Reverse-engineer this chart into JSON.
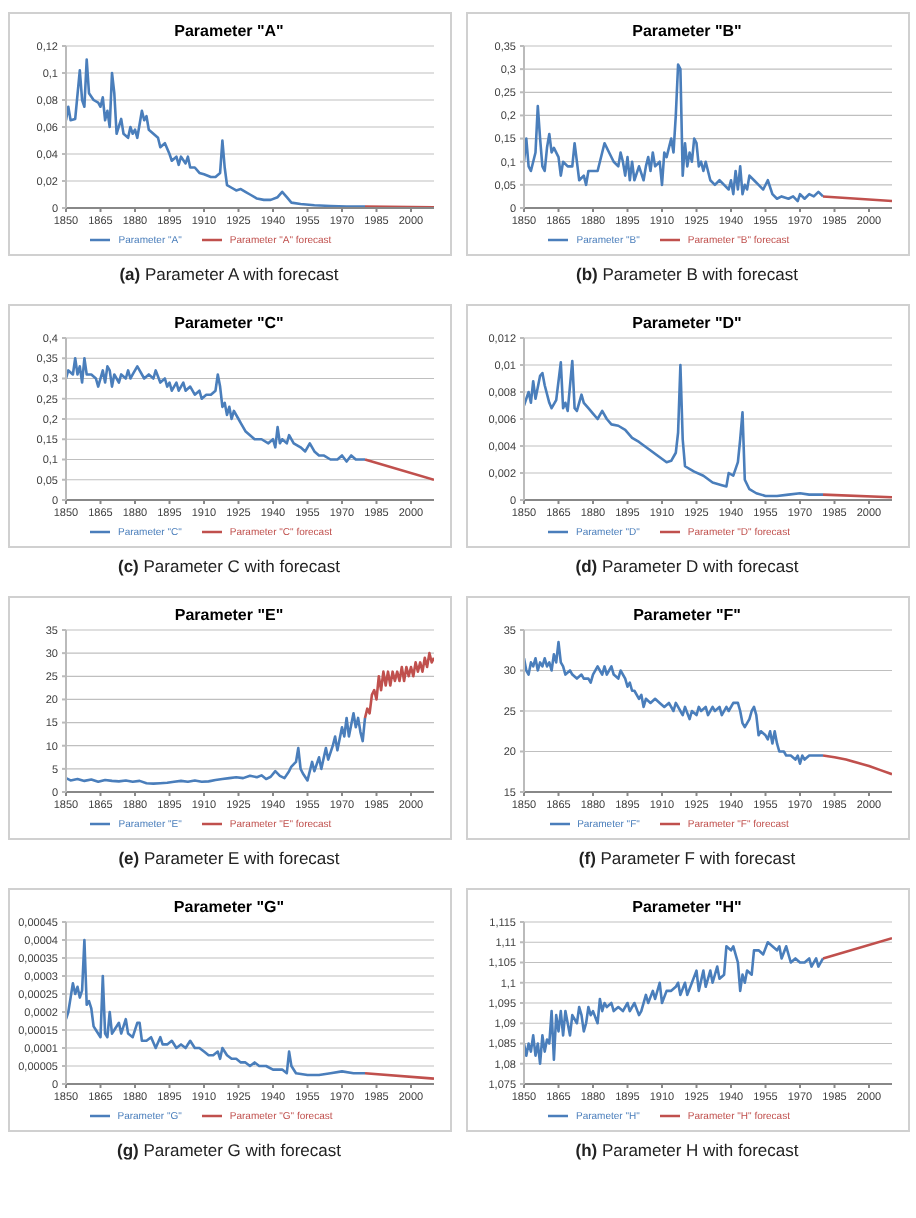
{
  "chart_data": [
    {
      "type": "line",
      "title": "Parameter \"A\"",
      "annotations": [
        "(a) Parameter A with forecast"
      ],
      "xlim": [
        1850,
        2010
      ],
      "xticks": [
        1850,
        1865,
        1880,
        1895,
        1910,
        1925,
        1940,
        1955,
        1970,
        1985,
        2000
      ],
      "ylim": [
        0,
        0.12
      ],
      "yticks": [
        0,
        {
          "value": 0.02,
          "label": "0,02"
        },
        {
          "value": 0.04,
          "label": "0,04"
        },
        {
          "value": 0.06,
          "label": "0,06"
        },
        {
          "value": 0.08,
          "label": "0,08"
        },
        {
          "value": 0.1,
          "label": "0,1"
        },
        {
          "value": 0.12,
          "label": "0,12"
        }
      ],
      "grid": "y",
      "legend": "bottom",
      "series": [
        {
          "name": "Parameter \"A\"",
          "color": "#4a7ebb",
          "x": [
            1850,
            1851,
            1852,
            1854,
            1856,
            1857,
            1858,
            1859,
            1860,
            1862,
            1864,
            1865,
            1866,
            1867,
            1868,
            1869,
            1870,
            1871,
            1872,
            1874,
            1875,
            1877,
            1878,
            1879,
            1880,
            1881,
            1883,
            1884,
            1885,
            1886,
            1888,
            1890,
            1891,
            1893,
            1895,
            1896,
            1898,
            1899,
            1900,
            1902,
            1903,
            1904,
            1906,
            1908,
            1910,
            1913,
            1915,
            1917,
            1918,
            1919,
            1920,
            1922,
            1924,
            1926,
            1928,
            1930,
            1933,
            1936,
            1939,
            1942,
            1944,
            1946,
            1948,
            1952,
            1958,
            1965,
            1972,
            1980
          ],
          "values": [
            0.065,
            0.075,
            0.065,
            0.066,
            0.102,
            0.08,
            0.075,
            0.11,
            0.085,
            0.08,
            0.078,
            0.075,
            0.082,
            0.065,
            0.072,
            0.06,
            0.1,
            0.085,
            0.055,
            0.066,
            0.055,
            0.052,
            0.06,
            0.055,
            0.058,
            0.052,
            0.072,
            0.065,
            0.068,
            0.058,
            0.055,
            0.052,
            0.045,
            0.048,
            0.04,
            0.035,
            0.038,
            0.032,
            0.038,
            0.033,
            0.038,
            0.03,
            0.03,
            0.026,
            0.025,
            0.023,
            0.023,
            0.026,
            0.05,
            0.03,
            0.017,
            0.015,
            0.013,
            0.014,
            0.012,
            0.01,
            0.007,
            0.006,
            0.006,
            0.008,
            0.012,
            0.008,
            0.004,
            0.003,
            0.002,
            0.0015,
            0.001,
            0.001
          ]
        },
        {
          "name": "Parameter \"A\" forecast",
          "color": "#c0504d",
          "x": [
            1980,
            2010
          ],
          "values": [
            0.001,
            0.0005
          ]
        }
      ]
    },
    {
      "type": "line",
      "title": "Parameter \"B\"",
      "annotations": [
        "(b) Parameter B with forecast"
      ],
      "xlim": [
        1850,
        2010
      ],
      "xticks": [
        1850,
        1865,
        1880,
        1895,
        1910,
        1925,
        1940,
        1955,
        1970,
        1985,
        2000
      ],
      "ylim": [
        0,
        0.35
      ],
      "yticks": [
        0,
        {
          "value": 0.05,
          "label": "0,05"
        },
        {
          "value": 0.1,
          "label": "0,1"
        },
        {
          "value": 0.15,
          "label": "0,15"
        },
        {
          "value": 0.2,
          "label": "0,2"
        },
        {
          "value": 0.25,
          "label": "0,25"
        },
        {
          "value": 0.3,
          "label": "0,3"
        },
        {
          "value": 0.35,
          "label": "0,35"
        }
      ],
      "grid": "y",
      "legend": "bottom",
      "series": [
        {
          "name": "Parameter \"B\"",
          "color": "#4a7ebb",
          "x": [
            1850,
            1851,
            1852,
            1853,
            1855,
            1856,
            1857,
            1858,
            1859,
            1860,
            1861,
            1862,
            1863,
            1865,
            1866,
            1867,
            1869,
            1871,
            1872,
            1873,
            1874,
            1876,
            1877,
            1878,
            1880,
            1882,
            1884,
            1885,
            1887,
            1889,
            1891,
            1892,
            1893,
            1894,
            1895,
            1896,
            1897,
            1898,
            1900,
            1902,
            1903,
            1904,
            1905,
            1906,
            1907,
            1909,
            1910,
            1911,
            1912,
            1913,
            1914,
            1915,
            1916,
            1917,
            1918,
            1919,
            1920,
            1921,
            1922,
            1923,
            1924,
            1925,
            1926,
            1927,
            1928,
            1929,
            1931,
            1933,
            1935,
            1937,
            1939,
            1940,
            1941,
            1942,
            1943,
            1944,
            1945,
            1946,
            1947,
            1948,
            1950,
            1952,
            1954,
            1956,
            1958,
            1960,
            1962,
            1965,
            1967,
            1969,
            1970,
            1972,
            1974,
            1976,
            1978,
            1980
          ],
          "values": [
            0.1,
            0.15,
            0.09,
            0.08,
            0.12,
            0.22,
            0.15,
            0.09,
            0.08,
            0.13,
            0.16,
            0.12,
            0.13,
            0.11,
            0.07,
            0.1,
            0.09,
            0.09,
            0.14,
            0.1,
            0.06,
            0.07,
            0.05,
            0.08,
            0.08,
            0.08,
            0.12,
            0.14,
            0.12,
            0.1,
            0.09,
            0.12,
            0.1,
            0.07,
            0.11,
            0.06,
            0.1,
            0.06,
            0.09,
            0.06,
            0.09,
            0.11,
            0.08,
            0.12,
            0.09,
            0.1,
            0.05,
            0.12,
            0.11,
            0.13,
            0.15,
            0.12,
            0.2,
            0.31,
            0.3,
            0.07,
            0.14,
            0.09,
            0.12,
            0.1,
            0.15,
            0.14,
            0.09,
            0.1,
            0.08,
            0.1,
            0.06,
            0.05,
            0.06,
            0.05,
            0.04,
            0.06,
            0.03,
            0.08,
            0.04,
            0.09,
            0.03,
            0.05,
            0.04,
            0.07,
            0.06,
            0.05,
            0.04,
            0.06,
            0.03,
            0.02,
            0.025,
            0.02,
            0.025,
            0.015,
            0.03,
            0.02,
            0.03,
            0.025,
            0.035,
            0.025
          ]
        },
        {
          "name": "Parameter \"B\" forecast",
          "color": "#c0504d",
          "x": [
            1980,
            2010
          ],
          "values": [
            0.025,
            0.015
          ]
        }
      ]
    },
    {
      "type": "line",
      "title": "Parameter \"C\"",
      "annotations": [
        "(c) Parameter C with forecast"
      ],
      "xlim": [
        1850,
        2010
      ],
      "xticks": [
        1850,
        1865,
        1880,
        1895,
        1910,
        1925,
        1940,
        1955,
        1970,
        1985,
        2000
      ],
      "ylim": [
        0,
        0.4
      ],
      "yticks": [
        0,
        {
          "value": 0.05,
          "label": "0,05"
        },
        {
          "value": 0.1,
          "label": "0,1"
        },
        {
          "value": 0.15,
          "label": "0,15"
        },
        {
          "value": 0.2,
          "label": "0,2"
        },
        {
          "value": 0.25,
          "label": "0,25"
        },
        {
          "value": 0.3,
          "label": "0,3"
        },
        {
          "value": 0.35,
          "label": "0,35"
        },
        {
          "value": 0.4,
          "label": "0,4"
        }
      ],
      "grid": "y",
      "legend": "bottom",
      "series": [
        {
          "name": "Parameter \"C\"",
          "color": "#4a7ebb",
          "x": [
            1850,
            1851,
            1853,
            1854,
            1855,
            1856,
            1857,
            1858,
            1859,
            1861,
            1863,
            1864,
            1866,
            1867,
            1868,
            1869,
            1870,
            1871,
            1873,
            1874,
            1876,
            1877,
            1878,
            1879,
            1881,
            1882,
            1884,
            1886,
            1888,
            1889,
            1891,
            1893,
            1894,
            1895,
            1896,
            1898,
            1899,
            1901,
            1902,
            1904,
            1906,
            1908,
            1909,
            1911,
            1913,
            1915,
            1916,
            1917,
            1918,
            1919,
            1920,
            1921,
            1922,
            1923,
            1925,
            1926,
            1928,
            1930,
            1932,
            1935,
            1938,
            1940,
            1941,
            1942,
            1943,
            1944,
            1946,
            1947,
            1949,
            1952,
            1954,
            1956,
            1958,
            1960,
            1962,
            1965,
            1968,
            1970,
            1972,
            1974,
            1976,
            1980
          ],
          "values": [
            0.3,
            0.32,
            0.31,
            0.35,
            0.31,
            0.33,
            0.29,
            0.35,
            0.31,
            0.31,
            0.3,
            0.28,
            0.32,
            0.29,
            0.33,
            0.32,
            0.28,
            0.31,
            0.29,
            0.31,
            0.3,
            0.32,
            0.3,
            0.31,
            0.33,
            0.32,
            0.3,
            0.31,
            0.3,
            0.32,
            0.29,
            0.3,
            0.28,
            0.29,
            0.27,
            0.29,
            0.27,
            0.29,
            0.27,
            0.28,
            0.26,
            0.27,
            0.25,
            0.26,
            0.26,
            0.27,
            0.31,
            0.28,
            0.23,
            0.24,
            0.21,
            0.23,
            0.2,
            0.22,
            0.2,
            0.19,
            0.17,
            0.16,
            0.15,
            0.15,
            0.14,
            0.15,
            0.13,
            0.18,
            0.14,
            0.15,
            0.14,
            0.16,
            0.14,
            0.13,
            0.12,
            0.14,
            0.12,
            0.11,
            0.11,
            0.1,
            0.1,
            0.11,
            0.095,
            0.11,
            0.1,
            0.1
          ]
        },
        {
          "name": "Parameter \"C\" forecast",
          "color": "#c0504d",
          "x": [
            1980,
            2010
          ],
          "values": [
            0.1,
            0.05
          ]
        }
      ]
    },
    {
      "type": "line",
      "title": "Parameter \"D\"",
      "annotations": [
        "(d) Parameter D with forecast"
      ],
      "xlim": [
        1850,
        2010
      ],
      "xticks": [
        1850,
        1865,
        1880,
        1895,
        1910,
        1925,
        1940,
        1955,
        1970,
        1985,
        2000
      ],
      "ylim": [
        0,
        0.012
      ],
      "yticks": [
        0,
        {
          "value": 0.002,
          "label": "0,002"
        },
        {
          "value": 0.004,
          "label": "0,004"
        },
        {
          "value": 0.006,
          "label": "0,006"
        },
        {
          "value": 0.008,
          "label": "0,008"
        },
        {
          "value": 0.01,
          "label": "0,01"
        },
        {
          "value": 0.012,
          "label": "0,012"
        }
      ],
      "grid": "y",
      "legend": "bottom",
      "series": [
        {
          "name": "Parameter \"D\"",
          "color": "#4a7ebb",
          "x": [
            1850,
            1852,
            1853,
            1854,
            1855,
            1857,
            1858,
            1859,
            1861,
            1862,
            1864,
            1866,
            1867,
            1868,
            1869,
            1871,
            1872,
            1873,
            1875,
            1876,
            1878,
            1880,
            1882,
            1884,
            1886,
            1888,
            1891,
            1894,
            1897,
            1900,
            1904,
            1908,
            1912,
            1914,
            1916,
            1917,
            1918,
            1919,
            1920,
            1924,
            1928,
            1932,
            1936,
            1938,
            1939,
            1941,
            1943,
            1944,
            1945,
            1946,
            1948,
            1951,
            1955,
            1960,
            1965,
            1970,
            1974,
            1980
          ],
          "values": [
            0.007,
            0.008,
            0.0072,
            0.0088,
            0.0075,
            0.0092,
            0.0094,
            0.0085,
            0.0072,
            0.0068,
            0.0074,
            0.0102,
            0.0068,
            0.0072,
            0.0066,
            0.0103,
            0.0068,
            0.0066,
            0.0078,
            0.0072,
            0.0068,
            0.0064,
            0.006,
            0.0066,
            0.006,
            0.0056,
            0.0055,
            0.0052,
            0.0046,
            0.0043,
            0.0038,
            0.0033,
            0.0028,
            0.0029,
            0.0035,
            0.005,
            0.01,
            0.0045,
            0.0025,
            0.0021,
            0.0018,
            0.0013,
            0.0011,
            0.001,
            0.002,
            0.0018,
            0.0028,
            0.0045,
            0.0065,
            0.0015,
            0.0008,
            0.0005,
            0.0003,
            0.0003,
            0.0004,
            0.0005,
            0.0004,
            0.0004
          ]
        },
        {
          "name": "Parameter \"D\" forecast",
          "color": "#c0504d",
          "x": [
            1980,
            2010
          ],
          "values": [
            0.0004,
            0.0002
          ]
        }
      ]
    },
    {
      "type": "line",
      "title": "Parameter \"E\"",
      "annotations": [
        "(e) Parameter E with forecast"
      ],
      "xlim": [
        1850,
        2010
      ],
      "xticks": [
        1850,
        1865,
        1880,
        1895,
        1910,
        1925,
        1940,
        1955,
        1970,
        1985,
        2000
      ],
      "ylim": [
        0,
        35
      ],
      "yticks": [
        0,
        5,
        10,
        15,
        20,
        25,
        30,
        35
      ],
      "grid": "y",
      "legend": "bottom",
      "series": [
        {
          "name": "Parameter \"E\"",
          "color": "#4a7ebb",
          "x": [
            1850,
            1852,
            1855,
            1858,
            1861,
            1864,
            1867,
            1870,
            1873,
            1876,
            1879,
            1882,
            1885,
            1888,
            1891,
            1894,
            1897,
            1900,
            1903,
            1906,
            1909,
            1912,
            1915,
            1918,
            1921,
            1924,
            1927,
            1930,
            1933,
            1935,
            1937,
            1939,
            1941,
            1943,
            1945,
            1947,
            1948,
            1950,
            1951,
            1952,
            1953,
            1955,
            1957,
            1958,
            1960,
            1961,
            1963,
            1964,
            1966,
            1967,
            1968,
            1970,
            1971,
            1972,
            1973,
            1975,
            1976,
            1977,
            1978,
            1979,
            1980
          ],
          "values": [
            3,
            2.5,
            2.8,
            2.4,
            2.7,
            2.2,
            2.6,
            2.4,
            2.3,
            2.5,
            2.2,
            2.4,
            1.9,
            1.8,
            1.9,
            2,
            2.2,
            2.4,
            2.2,
            2.5,
            2.2,
            2.3,
            2.6,
            2.8,
            3,
            3.2,
            3,
            3.5,
            3.2,
            3.6,
            2.8,
            3.3,
            4.5,
            3.5,
            3,
            4.5,
            5.5,
            6.5,
            9.5,
            5,
            4,
            2.5,
            6.5,
            4.5,
            7.5,
            5,
            9.5,
            7,
            10,
            12,
            9,
            14,
            12,
            16,
            12,
            17,
            14,
            16,
            13,
            11,
            16
          ]
        },
        {
          "name": "Parameter \"E\" forecast",
          "color": "#c0504d",
          "x": [
            1980,
            1981,
            1982,
            1983,
            1984,
            1985,
            1986,
            1987,
            1988,
            1989,
            1990,
            1991,
            1992,
            1993,
            1994,
            1995,
            1996,
            1997,
            1998,
            1999,
            2000,
            2001,
            2002,
            2003,
            2004,
            2005,
            2006,
            2007,
            2008,
            2009,
            2010
          ],
          "values": [
            16,
            18,
            17,
            21,
            22,
            20,
            25,
            22,
            26,
            23,
            26,
            23,
            26,
            24,
            26,
            24,
            27,
            24,
            27,
            25,
            27,
            25,
            28,
            26,
            28,
            26,
            29,
            27,
            30,
            28,
            29
          ]
        }
      ]
    },
    {
      "type": "line",
      "title": "Parameter \"F\"",
      "annotations": [
        "(f) Parameter F with forecast"
      ],
      "xlim": [
        1850,
        2010
      ],
      "xticks": [
        1850,
        1865,
        1880,
        1895,
        1910,
        1925,
        1940,
        1955,
        1970,
        1985,
        2000
      ],
      "ylim": [
        15,
        35
      ],
      "yticks": [
        15,
        20,
        25,
        30,
        35
      ],
      "grid": "y",
      "legend": "bottom",
      "series": [
        {
          "name": "Parameter \"F\"",
          "color": "#4a7ebb",
          "x": [
            1850,
            1851,
            1852,
            1853,
            1854,
            1855,
            1856,
            1857,
            1858,
            1859,
            1860,
            1861,
            1862,
            1863,
            1864,
            1865,
            1866,
            1867,
            1868,
            1870,
            1871,
            1873,
            1875,
            1876,
            1878,
            1879,
            1880,
            1882,
            1883,
            1884,
            1885,
            1886,
            1887,
            1888,
            1889,
            1891,
            1892,
            1894,
            1895,
            1896,
            1897,
            1898,
            1900,
            1901,
            1902,
            1903,
            1905,
            1907,
            1909,
            1911,
            1913,
            1915,
            1916,
            1917,
            1918,
            1919,
            1920,
            1922,
            1923,
            1925,
            1926,
            1927,
            1929,
            1930,
            1932,
            1933,
            1935,
            1936,
            1938,
            1939,
            1941,
            1943,
            1944,
            1945,
            1946,
            1948,
            1949,
            1950,
            1951,
            1952,
            1953,
            1955,
            1956,
            1957,
            1958,
            1959,
            1960,
            1961,
            1963,
            1964,
            1966,
            1968,
            1969,
            1970,
            1971,
            1972,
            1974,
            1976,
            1978,
            1980
          ],
          "values": [
            31.5,
            30,
            29.5,
            31,
            30.5,
            31.5,
            30,
            31,
            30.5,
            31.5,
            30.5,
            31,
            30,
            32,
            31,
            33.5,
            31,
            30.5,
            29.5,
            30,
            29.5,
            29,
            29.5,
            29,
            29,
            28.5,
            29.5,
            30.5,
            30,
            29.5,
            30.5,
            29.5,
            30,
            30.5,
            29.5,
            29,
            30,
            29,
            28,
            28.5,
            27.5,
            27.5,
            26.5,
            27,
            25.5,
            26.5,
            26,
            26.5,
            26,
            25.5,
            26,
            25,
            26,
            25.5,
            25,
            24.5,
            25.5,
            24,
            25,
            24.5,
            25.5,
            25,
            25.5,
            24.5,
            25.5,
            25,
            25.5,
            24.5,
            25.5,
            25,
            26,
            26,
            25,
            23.5,
            23,
            24,
            25,
            25.5,
            24.5,
            22,
            22.5,
            22,
            21.5,
            22.5,
            21,
            22.5,
            21,
            20,
            20,
            19.5,
            19.5,
            19,
            19.5,
            18.5,
            19.5,
            19,
            19.5,
            19.5,
            19.5,
            19.5
          ]
        },
        {
          "name": "Parameter \"F\" forecast",
          "color": "#c0504d",
          "x": [
            1980,
            1985,
            1990,
            1995,
            2000,
            2005,
            2010
          ],
          "values": [
            19.5,
            19.3,
            19,
            18.6,
            18.2,
            17.7,
            17.2
          ]
        }
      ]
    },
    {
      "type": "line",
      "title": "Parameter \"G\"",
      "annotations": [
        "(g) Parameter G with forecast"
      ],
      "xlim": [
        1850,
        2010
      ],
      "xticks": [
        1850,
        1865,
        1880,
        1895,
        1910,
        1925,
        1940,
        1955,
        1970,
        1985,
        2000
      ],
      "ylim": [
        0,
        0.00045
      ],
      "yticks": [
        0,
        {
          "value": 5e-05,
          "label": "0,00005"
        },
        {
          "value": 0.0001,
          "label": "0,0001"
        },
        {
          "value": 0.00015,
          "label": "0,00015"
        },
        {
          "value": 0.0002,
          "label": "0,0002"
        },
        {
          "value": 0.00025,
          "label": "0,00025"
        },
        {
          "value": 0.0003,
          "label": "0,0003"
        },
        {
          "value": 0.00035,
          "label": "0,00035"
        },
        {
          "value": 0.0004,
          "label": "0,0004"
        },
        {
          "value": 0.00045,
          "label": "0,00045"
        }
      ],
      "grid": "y",
      "legend": "bottom",
      "series": [
        {
          "name": "Parameter \"G\"",
          "color": "#4a7ebb",
          "x": [
            1850,
            1851,
            1852,
            1853,
            1854,
            1855,
            1856,
            1857,
            1858,
            1859,
            1860,
            1861,
            1862,
            1863,
            1865,
            1866,
            1867,
            1868,
            1869,
            1870,
            1871,
            1873,
            1874,
            1876,
            1877,
            1879,
            1881,
            1882,
            1883,
            1885,
            1887,
            1889,
            1891,
            1892,
            1894,
            1896,
            1898,
            1900,
            1902,
            1904,
            1906,
            1908,
            1910,
            1912,
            1914,
            1916,
            1917,
            1918,
            1920,
            1922,
            1924,
            1926,
            1928,
            1930,
            1932,
            1934,
            1937,
            1940,
            1944,
            1946,
            1947,
            1948,
            1950,
            1955,
            1960,
            1965,
            1970,
            1975,
            1980
          ],
          "values": [
            0.00018,
            0.0002,
            0.00024,
            0.00028,
            0.00025,
            0.00027,
            0.00024,
            0.00026,
            0.0004,
            0.00022,
            0.00023,
            0.00021,
            0.00016,
            0.00015,
            0.00013,
            0.0003,
            0.00014,
            0.00013,
            0.0002,
            0.00014,
            0.00015,
            0.00017,
            0.00014,
            0.00018,
            0.00014,
            0.00013,
            0.00017,
            0.00017,
            0.00012,
            0.00012,
            0.00013,
            0.0001,
            0.00013,
            0.00011,
            0.00011,
            0.00012,
            0.0001,
            0.00011,
            0.0001,
            0.00012,
            0.0001,
            0.0001,
            9e-05,
            8e-05,
            8e-05,
            9e-05,
            7e-05,
            0.0001,
            8e-05,
            7e-05,
            7e-05,
            6e-05,
            6e-05,
            5e-05,
            6e-05,
            5e-05,
            5e-05,
            4e-05,
            4e-05,
            3e-05,
            9e-05,
            5e-05,
            3e-05,
            2.5e-05,
            2.5e-05,
            3e-05,
            3.5e-05,
            3e-05,
            3e-05
          ]
        },
        {
          "name": "Parameter \"G\" forecast",
          "color": "#c0504d",
          "x": [
            1980,
            2010
          ],
          "values": [
            3e-05,
            1.5e-05
          ]
        }
      ]
    },
    {
      "type": "line",
      "title": "Parameter \"H\"",
      "annotations": [
        "(h) Parameter H with forecast"
      ],
      "xlim": [
        1850,
        2010
      ],
      "xticks": [
        1850,
        1865,
        1880,
        1895,
        1910,
        1925,
        1940,
        1955,
        1970,
        1985,
        2000
      ],
      "ylim": [
        1.075,
        1.115
      ],
      "yticks": [
        {
          "value": 1.075,
          "label": "1,075"
        },
        {
          "value": 1.08,
          "label": "1,08"
        },
        {
          "value": 1.085,
          "label": "1,085"
        },
        {
          "value": 1.09,
          "label": "1,09"
        },
        {
          "value": 1.095,
          "label": "1,095"
        },
        {
          "value": 1.1,
          "label": "1,1"
        },
        {
          "value": 1.105,
          "label": "1,105"
        },
        {
          "value": 1.11,
          "label": "1,11"
        },
        {
          "value": 1.115,
          "label": "1,115"
        }
      ],
      "grid": "y",
      "legend": "bottom",
      "series": [
        {
          "name": "Parameter \"H\"",
          "color": "#4a7ebb",
          "x": [
            1850,
            1851,
            1852,
            1853,
            1854,
            1855,
            1856,
            1857,
            1858,
            1859,
            1860,
            1861,
            1862,
            1863,
            1864,
            1865,
            1866,
            1867,
            1868,
            1869,
            1870,
            1871,
            1873,
            1874,
            1875,
            1876,
            1877,
            1878,
            1879,
            1880,
            1882,
            1883,
            1884,
            1885,
            1886,
            1888,
            1889,
            1891,
            1893,
            1895,
            1896,
            1898,
            1900,
            1901,
            1903,
            1904,
            1906,
            1907,
            1909,
            1910,
            1912,
            1914,
            1916,
            1917,
            1918,
            1920,
            1921,
            1923,
            1925,
            1926,
            1928,
            1929,
            1931,
            1932,
            1934,
            1935,
            1937,
            1938,
            1940,
            1941,
            1943,
            1944,
            1945,
            1946,
            1947,
            1949,
            1950,
            1952,
            1954,
            1956,
            1958,
            1960,
            1961,
            1962,
            1964,
            1966,
            1968,
            1970,
            1972,
            1974,
            1975,
            1977,
            1978,
            1980
          ],
          "values": [
            1.085,
            1.082,
            1.085,
            1.083,
            1.087,
            1.082,
            1.085,
            1.08,
            1.087,
            1.083,
            1.086,
            1.085,
            1.093,
            1.081,
            1.092,
            1.088,
            1.093,
            1.087,
            1.093,
            1.09,
            1.087,
            1.092,
            1.09,
            1.094,
            1.092,
            1.088,
            1.09,
            1.094,
            1.092,
            1.093,
            1.09,
            1.096,
            1.093,
            1.095,
            1.094,
            1.095,
            1.093,
            1.094,
            1.093,
            1.095,
            1.093,
            1.095,
            1.092,
            1.093,
            1.097,
            1.095,
            1.098,
            1.096,
            1.1,
            1.095,
            1.098,
            1.098,
            1.099,
            1.1,
            1.097,
            1.1,
            1.097,
            1.1,
            1.103,
            1.098,
            1.103,
            1.099,
            1.103,
            1.1,
            1.104,
            1.101,
            1.102,
            1.109,
            1.108,
            1.109,
            1.105,
            1.098,
            1.102,
            1.1,
            1.103,
            1.102,
            1.108,
            1.108,
            1.107,
            1.11,
            1.109,
            1.108,
            1.109,
            1.106,
            1.109,
            1.105,
            1.106,
            1.105,
            1.105,
            1.106,
            1.104,
            1.106,
            1.104,
            1.106
          ]
        },
        {
          "name": "Parameter \"H\" forecast",
          "color": "#c0504d",
          "x": [
            1980,
            2010
          ],
          "values": [
            1.106,
            1.111
          ]
        }
      ]
    }
  ]
}
